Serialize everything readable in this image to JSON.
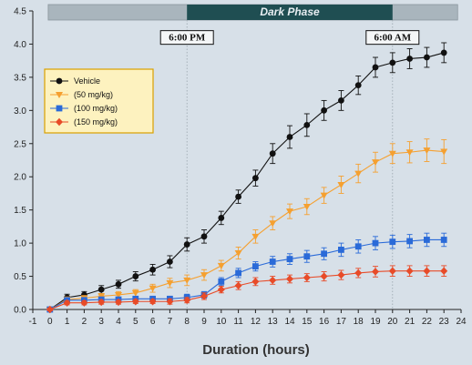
{
  "chart_data": {
    "type": "line",
    "title": "",
    "xlabel": "Duration (hours)",
    "ylabel": "",
    "xlim": [
      -1,
      24
    ],
    "ylim": [
      0,
      4.5
    ],
    "x_ticks": [
      "-1",
      "0",
      "1",
      "2",
      "3",
      "4",
      "5",
      "6",
      "7",
      "8",
      "9",
      "10",
      "11",
      "12",
      "13",
      "14",
      "15",
      "16",
      "17",
      "18",
      "19",
      "20",
      "21",
      "22",
      "23",
      "24"
    ],
    "y_ticks": [
      "0.0",
      "0.5",
      "1.0",
      "1.5",
      "2.0",
      "2.5",
      "3.0",
      "3.5",
      "4.0",
      "4.5"
    ],
    "x": [
      0,
      1,
      2,
      3,
      4,
      5,
      6,
      7,
      8,
      9,
      10,
      11,
      12,
      13,
      14,
      15,
      16,
      17,
      18,
      19,
      20,
      21,
      22,
      23
    ],
    "series": [
      {
        "name": "Vehicle",
        "color": "#111111",
        "marker": "circle",
        "values": [
          0,
          0.18,
          0.22,
          0.3,
          0.38,
          0.5,
          0.6,
          0.72,
          0.98,
          1.1,
          1.38,
          1.7,
          1.98,
          2.35,
          2.6,
          2.78,
          3.0,
          3.15,
          3.38,
          3.65,
          3.72,
          3.78,
          3.8,
          3.87
        ],
        "errors": [
          0.02,
          0.05,
          0.05,
          0.06,
          0.06,
          0.07,
          0.08,
          0.09,
          0.1,
          0.1,
          0.1,
          0.1,
          0.12,
          0.15,
          0.17,
          0.17,
          0.15,
          0.15,
          0.14,
          0.15,
          0.15,
          0.15,
          0.15,
          0.15
        ]
      },
      {
        "name": "(50 mg/kg)",
        "color": "#f5a030",
        "marker": "triangle-down",
        "values": [
          0,
          0.15,
          0.17,
          0.2,
          0.22,
          0.25,
          0.32,
          0.4,
          0.44,
          0.52,
          0.66,
          0.85,
          1.1,
          1.3,
          1.48,
          1.55,
          1.72,
          1.88,
          2.05,
          2.22,
          2.35,
          2.37,
          2.4,
          2.38
        ],
        "errors": [
          0.02,
          0.04,
          0.04,
          0.04,
          0.05,
          0.05,
          0.06,
          0.07,
          0.08,
          0.08,
          0.08,
          0.09,
          0.1,
          0.1,
          0.11,
          0.12,
          0.12,
          0.13,
          0.14,
          0.15,
          0.15,
          0.16,
          0.17,
          0.18
        ]
      },
      {
        "name": "(100 mg/kg)",
        "color": "#2a6ad8",
        "marker": "square",
        "values": [
          0,
          0.14,
          0.14,
          0.15,
          0.15,
          0.16,
          0.16,
          0.16,
          0.18,
          0.22,
          0.42,
          0.55,
          0.65,
          0.72,
          0.76,
          0.8,
          0.84,
          0.9,
          0.95,
          1.0,
          1.02,
          1.03,
          1.05,
          1.05
        ],
        "errors": [
          0.02,
          0.03,
          0.03,
          0.03,
          0.03,
          0.04,
          0.04,
          0.04,
          0.05,
          0.05,
          0.06,
          0.07,
          0.07,
          0.08,
          0.08,
          0.09,
          0.09,
          0.1,
          0.1,
          0.1,
          0.1,
          0.1,
          0.1,
          0.1
        ]
      },
      {
        "name": "(150 mg/kg)",
        "color": "#e84b28",
        "marker": "diamond",
        "values": [
          0,
          0.1,
          0.1,
          0.11,
          0.11,
          0.12,
          0.12,
          0.12,
          0.14,
          0.2,
          0.3,
          0.36,
          0.42,
          0.44,
          0.46,
          0.48,
          0.5,
          0.52,
          0.55,
          0.57,
          0.58,
          0.58,
          0.58,
          0.58
        ],
        "errors": [
          0.02,
          0.03,
          0.03,
          0.03,
          0.03,
          0.03,
          0.03,
          0.04,
          0.04,
          0.05,
          0.05,
          0.06,
          0.06,
          0.06,
          0.06,
          0.06,
          0.07,
          0.07,
          0.07,
          0.08,
          0.08,
          0.08,
          0.08,
          0.08
        ]
      }
    ],
    "dark_phase": {
      "label": "Dark Phase",
      "start": 8,
      "end": 20
    },
    "time_markers": [
      {
        "label": "6:00 PM",
        "x": 8
      },
      {
        "label": "6:00 AM",
        "x": 20
      }
    ],
    "legend": "top-left",
    "grid": false
  },
  "colors": {
    "background": "#d7e0e8",
    "phase_bar_light": "#a9b5bd",
    "phase_bar_dark": "#1f4e52",
    "legend_bg": "#fdf2bf",
    "legend_border": "#d9a000"
  }
}
